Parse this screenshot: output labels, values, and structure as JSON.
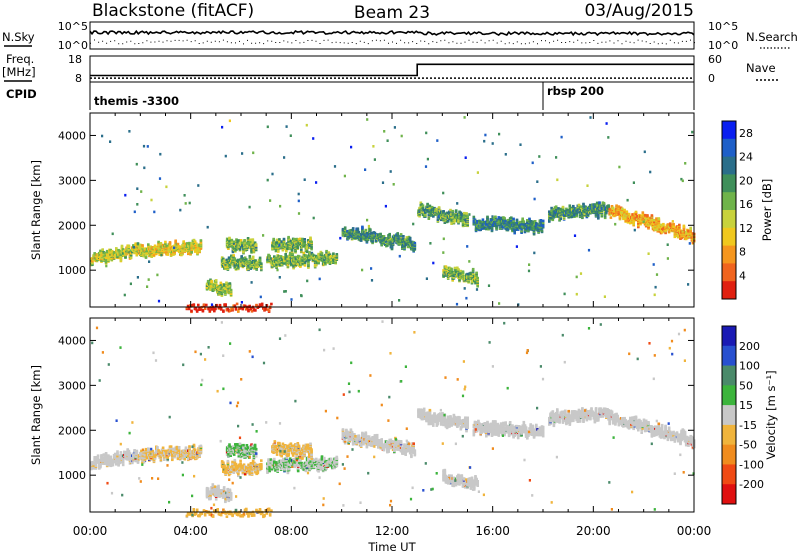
{
  "header": {
    "station": "Blackstone (fitACF)",
    "beam": "Beam 23",
    "date": "03/Aug/2015"
  },
  "top_panels": {
    "nsky_label": "N.Sky",
    "nsearch_label": "N.Search",
    "noise_ticks_left": [
      "10^5",
      "10^0"
    ],
    "noise_ticks_right": [
      "10^5",
      "10^0"
    ],
    "freq_label": "Freq.",
    "freq_unit": "[MHz]",
    "freq_ticks": [
      "18",
      "8"
    ],
    "nave_label": "Nave",
    "nave_ticks": [
      "60",
      "0"
    ],
    "cpid_label": "CPID",
    "cpid_segments": [
      {
        "label": "themis -3300",
        "start_hour": 0,
        "end_hour": 18
      },
      {
        "label": "rbsp 200",
        "start_hour": 18,
        "end_hour": 24
      }
    ],
    "freq_mhz": [
      {
        "hour": 0,
        "value": 10.5
      },
      {
        "hour": 13,
        "value": 10.5
      },
      {
        "hour": 13,
        "value": 14.8
      },
      {
        "hour": 24,
        "value": 14.8
      }
    ],
    "nave": [
      {
        "hour": 0,
        "value": 9
      },
      {
        "hour": 24,
        "value": 9
      }
    ]
  },
  "chart_data": [
    {
      "type": "heatmap",
      "title": "Power",
      "parameter": "Power",
      "ylabel": "Slant Range [km]",
      "yticks": [
        "1000",
        "2000",
        "3000",
        "4000"
      ],
      "ylim": [
        180,
        4500
      ],
      "xlabel": "Time UT",
      "xticks": [
        "00:00",
        "04:00",
        "08:00",
        "12:00",
        "16:00",
        "20:00",
        "00:00"
      ],
      "xlim_hours": [
        0,
        24
      ],
      "colorbar": {
        "label": "Power [dB]",
        "ticks": [
          "4",
          "8",
          "12",
          "16",
          "20",
          "24",
          "28"
        ],
        "range": [
          0,
          30
        ],
        "colors": [
          "#0a1ff0",
          "#1e5fc8",
          "#2a6e8a",
          "#3f8f5a",
          "#6fb34a",
          "#c8d23c",
          "#f0c81e",
          "#f5961e",
          "#f0641e",
          "#e02010"
        ]
      },
      "echo_regions": [
        {
          "t0": 0.0,
          "t1": 1.9,
          "r_start": 1300,
          "r_end": 1480,
          "level": 0.55
        },
        {
          "t0": 1.9,
          "t1": 4.4,
          "r_start": 1480,
          "r_end": 1560,
          "level": 0.6
        },
        {
          "t0": 4.6,
          "t1": 5.6,
          "r_start": 680,
          "r_end": 600,
          "level": 0.5
        },
        {
          "t0": 5.2,
          "t1": 6.8,
          "r_start": 1200,
          "r_end": 1200,
          "level": 0.45
        },
        {
          "t0": 5.4,
          "t1": 6.6,
          "r_start": 1580,
          "r_end": 1580,
          "level": 0.45
        },
        {
          "t0": 7.0,
          "t1": 9.8,
          "r_start": 1250,
          "r_end": 1300,
          "level": 0.45
        },
        {
          "t0": 7.2,
          "t1": 8.8,
          "r_start": 1620,
          "r_end": 1580,
          "level": 0.45
        },
        {
          "t0": 10.0,
          "t1": 12.9,
          "r_start": 1900,
          "r_end": 1600,
          "level": 0.35
        },
        {
          "t0": 13.0,
          "t1": 15.0,
          "r_start": 2400,
          "r_end": 2150,
          "level": 0.4
        },
        {
          "t0": 14.0,
          "t1": 15.4,
          "r_start": 1000,
          "r_end": 850,
          "level": 0.45
        },
        {
          "t0": 15.2,
          "t1": 18.0,
          "r_start": 2100,
          "r_end": 2000,
          "level": 0.3
        },
        {
          "t0": 18.2,
          "t1": 20.6,
          "r_start": 2300,
          "r_end": 2400,
          "level": 0.35
        },
        {
          "t0": 20.6,
          "t1": 24.0,
          "r_start": 2350,
          "r_end": 1800,
          "level": 0.7
        },
        {
          "t0": 3.8,
          "t1": 7.2,
          "r_start": 200,
          "r_end": 200,
          "level": 0.95
        }
      ]
    },
    {
      "type": "heatmap",
      "title": "Velocity",
      "parameter": "Velocity",
      "ylabel": "Slant Range [km]",
      "yticks": [
        "1000",
        "2000",
        "3000",
        "4000"
      ],
      "ylim": [
        180,
        4500
      ],
      "xlabel": "Time UT",
      "xticks": [
        "00:00",
        "04:00",
        "08:00",
        "12:00",
        "16:00",
        "20:00",
        "00:00"
      ],
      "xlim_hours": [
        0,
        24
      ],
      "colorbar": {
        "label": "Velocity [m s⁻¹]",
        "ticks": [
          "200",
          "100",
          "50",
          "15",
          "-15",
          "-50",
          "-100",
          "-200"
        ],
        "range": [
          -250,
          250
        ],
        "colors": [
          "#1a1ab4",
          "#2850d0",
          "#4a8a6a",
          "#3cb43c",
          "#c8c8c8",
          "#f0b43c",
          "#f08c1e",
          "#f04a14",
          "#e01010"
        ]
      },
      "echo_regions": [
        {
          "t0": 0.0,
          "t1": 1.9,
          "r_start": 1300,
          "r_end": 1480,
          "velocity": -5
        },
        {
          "t0": 1.9,
          "t1": 4.4,
          "r_start": 1480,
          "r_end": 1560,
          "velocity": -30
        },
        {
          "t0": 4.6,
          "t1": 5.6,
          "r_start": 680,
          "r_end": 600,
          "velocity": -5
        },
        {
          "t0": 5.2,
          "t1": 6.8,
          "r_start": 1200,
          "r_end": 1200,
          "velocity": -40
        },
        {
          "t0": 5.4,
          "t1": 6.6,
          "r_start": 1580,
          "r_end": 1580,
          "velocity": 30
        },
        {
          "t0": 7.0,
          "t1": 9.8,
          "r_start": 1250,
          "r_end": 1300,
          "velocity": 20
        },
        {
          "t0": 7.2,
          "t1": 8.8,
          "r_start": 1620,
          "r_end": 1580,
          "velocity": -40
        },
        {
          "t0": 10.0,
          "t1": 12.9,
          "r_start": 1900,
          "r_end": 1600,
          "velocity": -5
        },
        {
          "t0": 13.0,
          "t1": 15.0,
          "r_start": 2400,
          "r_end": 2150,
          "velocity": 0
        },
        {
          "t0": 14.0,
          "t1": 15.4,
          "r_start": 1000,
          "r_end": 850,
          "velocity": 0
        },
        {
          "t0": 15.2,
          "t1": 18.0,
          "r_start": 2100,
          "r_end": 2000,
          "velocity": 0
        },
        {
          "t0": 18.2,
          "t1": 20.6,
          "r_start": 2300,
          "r_end": 2400,
          "velocity": 0
        },
        {
          "t0": 20.6,
          "t1": 24.0,
          "r_start": 2350,
          "r_end": 1800,
          "velocity": 0
        },
        {
          "t0": 3.8,
          "t1": 7.2,
          "r_start": 200,
          "r_end": 200,
          "velocity": -60
        }
      ]
    }
  ]
}
